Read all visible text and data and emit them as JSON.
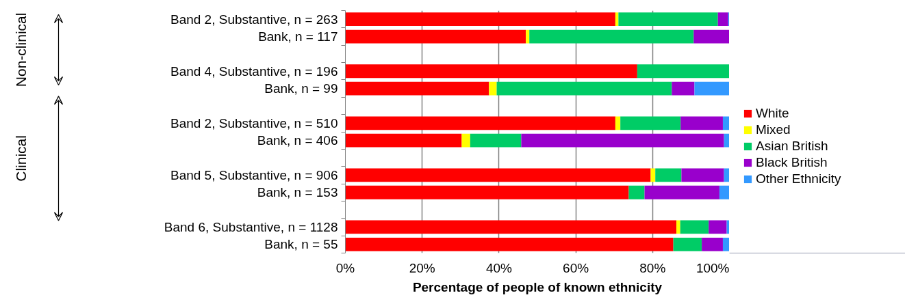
{
  "chart_data": {
    "type": "bar",
    "orientation": "horizontal",
    "stacked": true,
    "xlabel": "Percentage of people of known ethnicity",
    "categories": [
      "Band 2, Substantive, n = 263",
      "Bank, n = 117",
      null,
      "Band 4, Substantive, n = 196",
      "Bank, n = 99",
      null,
      "Band 2, Substantive, n = 510",
      "Bank, n = 406",
      null,
      "Band 5, Substantive, n = 906",
      "Bank, n = 153",
      null,
      "Band 6, Substantive, n = 1128",
      "Bank, n = 55"
    ],
    "series": [
      {
        "name": "White",
        "color": "#ff0000",
        "values": [
          70.3,
          47.0,
          null,
          76.0,
          37.4,
          null,
          70.3,
          30.3,
          null,
          79.5,
          73.8,
          null,
          86.2,
          85.4
        ]
      },
      {
        "name": "Mixed",
        "color": "#ffff00",
        "values": [
          0.8,
          0.9,
          null,
          0,
          2.0,
          null,
          1.3,
          2.2,
          null,
          1.2,
          0,
          null,
          1.0,
          0
        ]
      },
      {
        "name": "Asian British",
        "color": "#00cc66",
        "values": [
          25.9,
          42.8,
          null,
          24.0,
          45.6,
          null,
          15.7,
          13.3,
          null,
          6.8,
          4.1,
          null,
          7.4,
          7.4
        ]
      },
      {
        "name": "Black British",
        "color": "#9900cc",
        "values": [
          2.7,
          9.3,
          null,
          0,
          5.9,
          null,
          11.0,
          52.8,
          null,
          11.1,
          19.5,
          null,
          4.7,
          5.5
        ]
      },
      {
        "name": "Other Ethnicity",
        "color": "#3399ff",
        "values": [
          0.3,
          0,
          null,
          0,
          9.1,
          null,
          1.7,
          1.4,
          null,
          1.4,
          2.6,
          null,
          0.7,
          1.7
        ]
      }
    ],
    "xlim": [
      0,
      100
    ],
    "xticks": [
      {
        "value": 0,
        "label": "0%"
      },
      {
        "value": 20,
        "label": "20%"
      },
      {
        "value": 40,
        "label": "40%"
      },
      {
        "value": 60,
        "label": "60%"
      },
      {
        "value": 80,
        "label": "80%"
      },
      {
        "value": 100,
        "label": "100%"
      }
    ],
    "grid": "x",
    "legend": "right",
    "annotations": [
      "Non-clinical",
      "Clinical"
    ]
  }
}
